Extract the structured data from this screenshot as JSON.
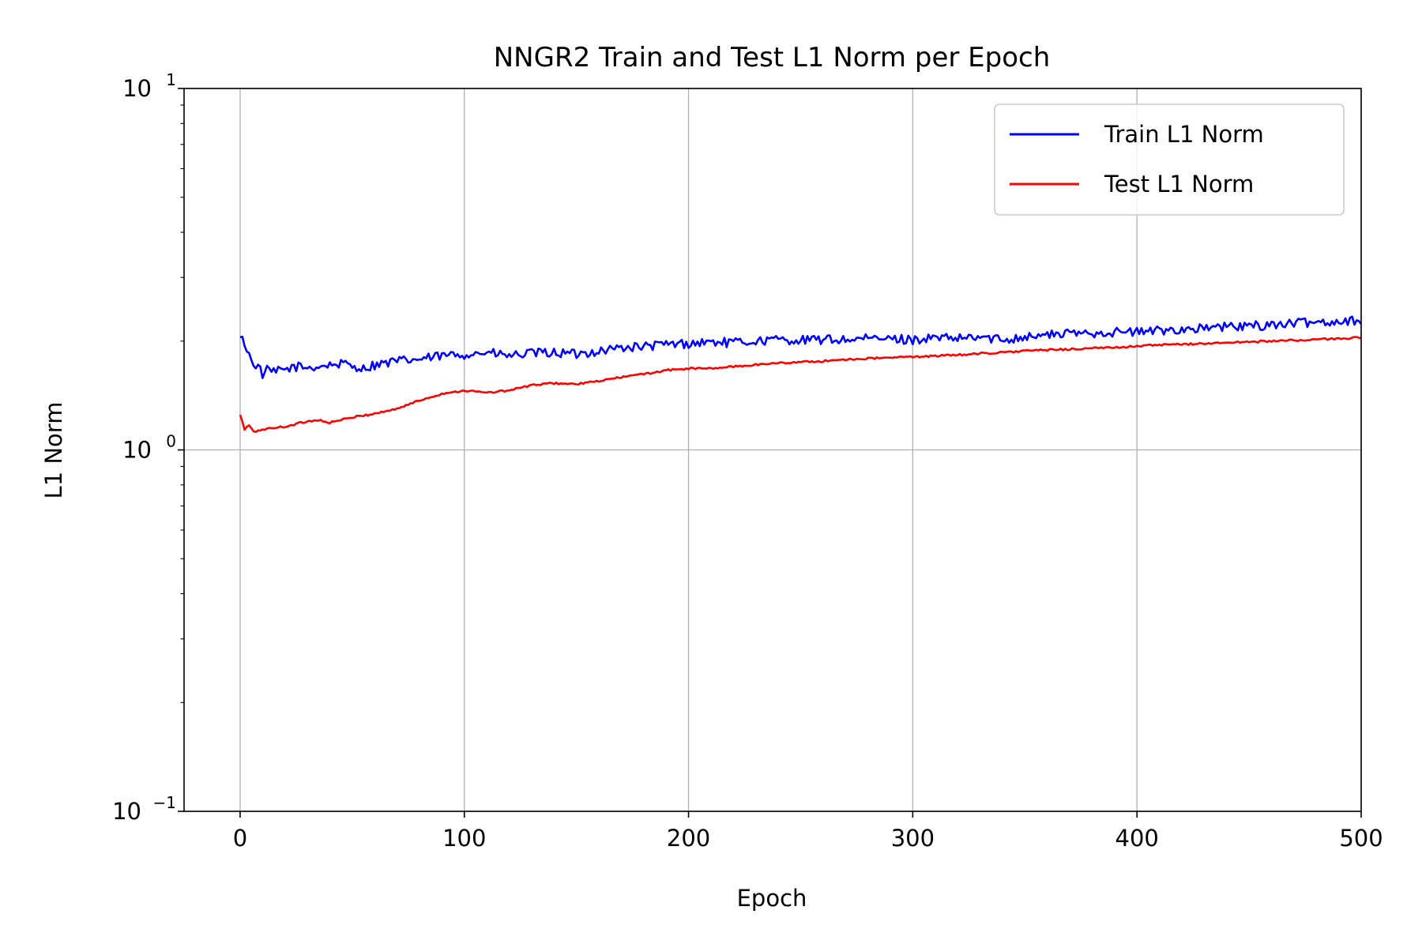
{
  "chart_data": {
    "type": "line",
    "title": "NNGR2 Train and Test L1 Norm per Epoch",
    "xlabel": "Epoch",
    "ylabel": "L1 Norm",
    "xlim": [
      -25,
      500
    ],
    "ylim": [
      0.1,
      10
    ],
    "yscale": "log",
    "grid": true,
    "legend_position": "top-right",
    "x_ticks": [
      {
        "value": 0,
        "label": "0"
      },
      {
        "value": 100,
        "label": "100"
      },
      {
        "value": 200,
        "label": "200"
      },
      {
        "value": 300,
        "label": "300"
      },
      {
        "value": 400,
        "label": "400"
      },
      {
        "value": 500,
        "label": "500"
      }
    ],
    "y_ticks": [
      {
        "value": 0.1,
        "base": "10",
        "exp": "−1"
      },
      {
        "value": 1,
        "base": "10",
        "exp": "0"
      },
      {
        "value": 10,
        "base": "10",
        "exp": "1"
      }
    ],
    "series": [
      {
        "name": "Train L1 Norm",
        "color": "#0000ff",
        "x": [
          0,
          2,
          5,
          8,
          10,
          12,
          15,
          20,
          25,
          30,
          35,
          40,
          45,
          50,
          55,
          60,
          70,
          80,
          90,
          100,
          110,
          120,
          130,
          140,
          150,
          160,
          170,
          180,
          190,
          200,
          210,
          220,
          230,
          240,
          250,
          260,
          270,
          280,
          290,
          300,
          310,
          320,
          330,
          340,
          350,
          360,
          370,
          380,
          390,
          400,
          410,
          420,
          430,
          440,
          450,
          460,
          470,
          480,
          490,
          500
        ],
        "y": [
          2.05,
          1.98,
          1.76,
          1.7,
          1.62,
          1.66,
          1.64,
          1.67,
          1.7,
          1.69,
          1.7,
          1.72,
          1.73,
          1.71,
          1.68,
          1.72,
          1.76,
          1.78,
          1.82,
          1.84,
          1.86,
          1.82,
          1.85,
          1.86,
          1.84,
          1.88,
          1.92,
          1.93,
          1.96,
          1.97,
          1.99,
          1.98,
          2.0,
          2.02,
          2.01,
          2.02,
          2.02,
          2.03,
          2.03,
          2.02,
          2.04,
          2.03,
          2.05,
          2.02,
          2.06,
          2.08,
          2.1,
          2.11,
          2.12,
          2.12,
          2.14,
          2.16,
          2.17,
          2.19,
          2.2,
          2.22,
          2.24,
          2.26,
          2.27,
          2.29
        ],
        "noise": 0.03
      },
      {
        "name": "Test L1 Norm",
        "color": "#ff0000",
        "x": [
          0,
          2,
          4,
          6,
          10,
          15,
          20,
          25,
          30,
          35,
          40,
          50,
          60,
          70,
          80,
          90,
          100,
          110,
          120,
          130,
          140,
          150,
          160,
          170,
          180,
          190,
          200,
          210,
          220,
          230,
          240,
          250,
          260,
          270,
          280,
          290,
          300,
          310,
          320,
          330,
          340,
          350,
          360,
          370,
          380,
          390,
          400,
          410,
          420,
          430,
          440,
          450,
          460,
          470,
          480,
          490,
          500
        ],
        "y": [
          1.25,
          1.14,
          1.17,
          1.12,
          1.14,
          1.15,
          1.16,
          1.18,
          1.2,
          1.21,
          1.19,
          1.23,
          1.26,
          1.3,
          1.37,
          1.43,
          1.46,
          1.44,
          1.46,
          1.51,
          1.53,
          1.52,
          1.55,
          1.59,
          1.62,
          1.66,
          1.68,
          1.68,
          1.7,
          1.72,
          1.74,
          1.75,
          1.76,
          1.78,
          1.79,
          1.8,
          1.81,
          1.82,
          1.83,
          1.85,
          1.86,
          1.88,
          1.89,
          1.9,
          1.91,
          1.92,
          1.94,
          1.95,
          1.96,
          1.97,
          1.98,
          1.99,
          2.0,
          2.01,
          2.02,
          2.03,
          2.05
        ],
        "noise": 0.006
      }
    ]
  }
}
